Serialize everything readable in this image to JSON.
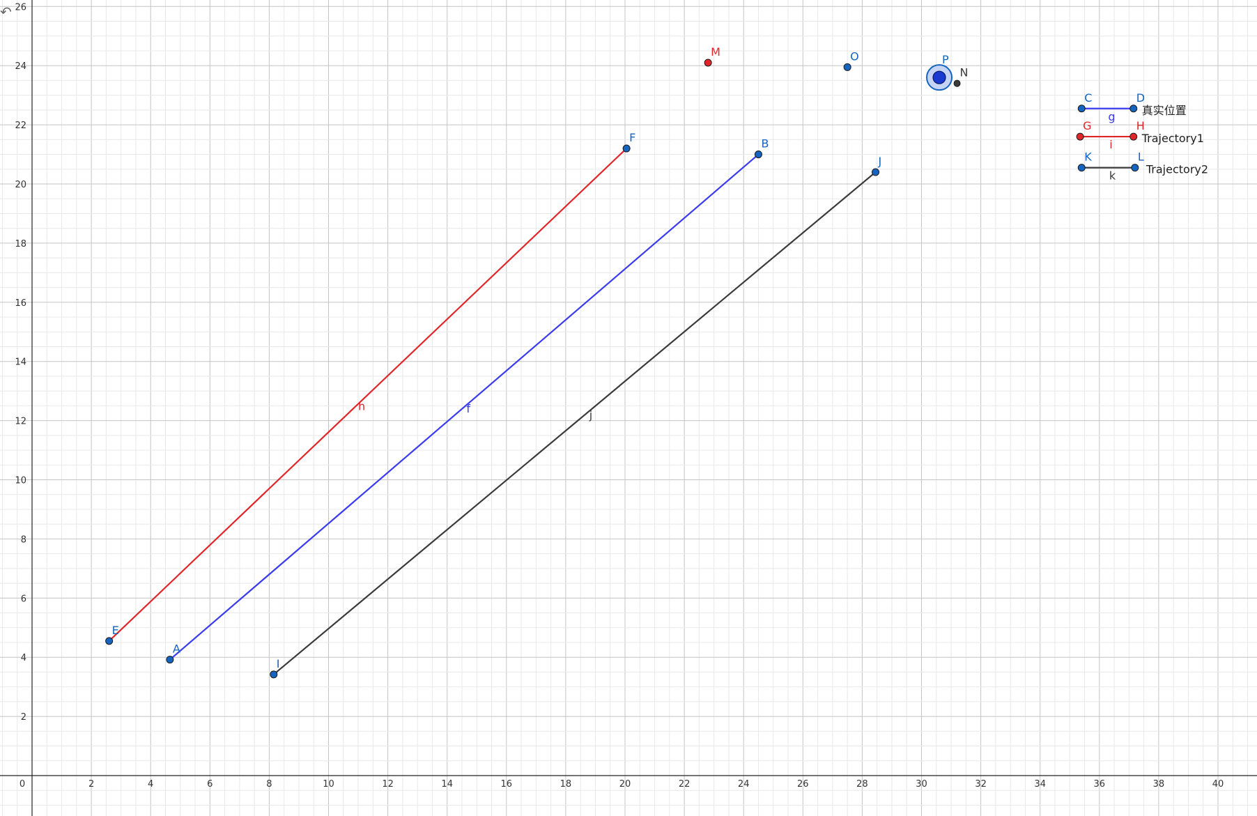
{
  "app": {
    "view": "graphics"
  },
  "axes": {
    "x_tick_labels": [
      "0",
      "2",
      "4",
      "6",
      "8",
      "10",
      "12",
      "14",
      "16",
      "18",
      "20",
      "22",
      "24",
      "26",
      "28",
      "30",
      "32",
      "34",
      "36",
      "38",
      "40"
    ],
    "y_tick_labels": [
      "2",
      "4",
      "6",
      "8",
      "10",
      "12",
      "14",
      "16",
      "18",
      "20",
      "22",
      "24",
      "26"
    ],
    "grid": true
  },
  "colors": {
    "red": "#e0262a",
    "blue": "#3a3aee",
    "black": "#3a3a3a",
    "point_blue": "#1565c0",
    "label_blue": "#1565c0",
    "label_red": "#e0262a"
  },
  "points": [
    {
      "name": "E",
      "x": 2.6,
      "y": 4.55,
      "color": "point_blue",
      "label_color": "label_blue"
    },
    {
      "name": "F",
      "x": 20.05,
      "y": 21.2,
      "color": "point_blue",
      "label_color": "label_blue"
    },
    {
      "name": "A",
      "x": 4.65,
      "y": 3.92,
      "color": "point_blue",
      "label_color": "label_blue"
    },
    {
      "name": "B",
      "x": 24.5,
      "y": 21.0,
      "color": "point_blue",
      "label_color": "label_blue"
    },
    {
      "name": "I",
      "x": 8.15,
      "y": 3.42,
      "color": "point_blue",
      "label_color": "label_blue"
    },
    {
      "name": "J",
      "x": 28.45,
      "y": 20.4,
      "color": "point_blue",
      "label_color": "label_blue"
    },
    {
      "name": "M",
      "x": 22.8,
      "y": 24.1,
      "color": "red",
      "label_color": "label_red"
    },
    {
      "name": "O",
      "x": 27.5,
      "y": 23.95,
      "color": "point_blue",
      "label_color": "label_blue"
    },
    {
      "name": "N",
      "x": 31.2,
      "y": 23.4,
      "color": "black",
      "label_color": "black"
    },
    {
      "name": "C",
      "x": 35.4,
      "y": 22.55,
      "color": "point_blue",
      "label_color": "label_blue"
    },
    {
      "name": "D",
      "x": 37.15,
      "y": 22.55,
      "color": "point_blue",
      "label_color": "label_blue"
    },
    {
      "name": "G",
      "x": 35.35,
      "y": 21.6,
      "color": "red",
      "label_color": "label_red"
    },
    {
      "name": "H",
      "x": 37.15,
      "y": 21.6,
      "color": "red",
      "label_color": "label_red"
    },
    {
      "name": "K",
      "x": 35.4,
      "y": 20.55,
      "color": "point_blue",
      "label_color": "label_blue"
    },
    {
      "name": "L",
      "x": 37.2,
      "y": 20.55,
      "color": "point_blue",
      "label_color": "label_blue"
    }
  ],
  "selected_point": {
    "name": "P",
    "x": 30.6,
    "y": 23.6,
    "color": "point_blue",
    "label_color": "label_blue"
  },
  "segments": [
    {
      "name": "h",
      "from": "E",
      "to": "F",
      "color": "red",
      "label_at": 0.48
    },
    {
      "name": "f",
      "from": "A",
      "to": "B",
      "color": "blue",
      "label_at": 0.5
    },
    {
      "name": "j",
      "from": "I",
      "to": "J",
      "color": "black",
      "label_at": 0.52
    },
    {
      "name": "g",
      "from": "C",
      "to": "D",
      "color": "blue",
      "label_at": 0.5
    },
    {
      "name": "i",
      "from": "G",
      "to": "H",
      "color": "red",
      "label_at": 0.5
    },
    {
      "name": "k",
      "from": "K",
      "to": "L",
      "color": "black",
      "label_at": 0.5
    }
  ],
  "legend": [
    {
      "text": "真实位置",
      "anchor": "D"
    },
    {
      "text": "Trajectory1",
      "anchor": "H"
    },
    {
      "text": "Trajectory2",
      "anchor": "L"
    }
  ],
  "toolbar": {
    "undo_glyph": "↶"
  }
}
